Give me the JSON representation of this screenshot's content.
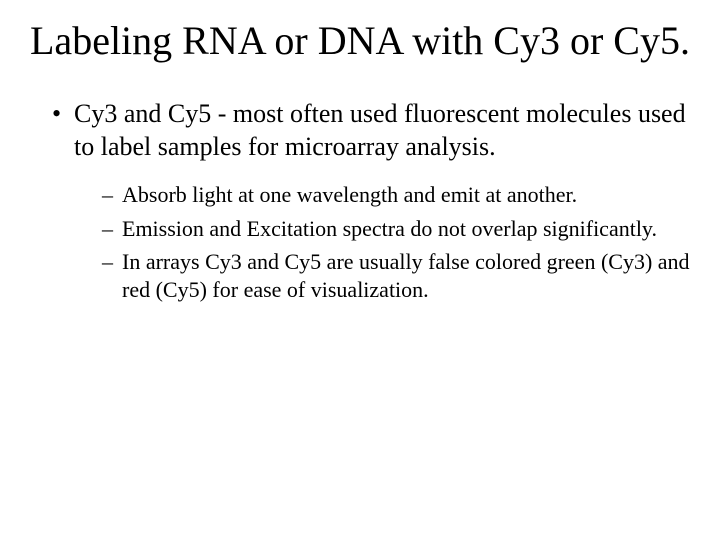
{
  "title": "Labeling RNA or DNA with Cy3 or Cy5.",
  "level1": {
    "marker": "•",
    "items": [
      "Cy3 and Cy5 - most often used fluorescent molecules used to label samples for microarray analysis."
    ]
  },
  "level2": {
    "marker": "–",
    "items": [
      "Absorb light at one wavelength and emit at another.",
      "Emission and Excitation spectra do not overlap significantly.",
      "In arrays Cy3 and Cy5 are usually false colored green (Cy3) and red (Cy5) for ease of visualization."
    ]
  },
  "colors": {
    "background": "#ffffff",
    "text": "#000000"
  },
  "typography": {
    "family": "Times New Roman",
    "title_size_pt": 40,
    "level1_size_pt": 26,
    "level2_size_pt": 22
  }
}
